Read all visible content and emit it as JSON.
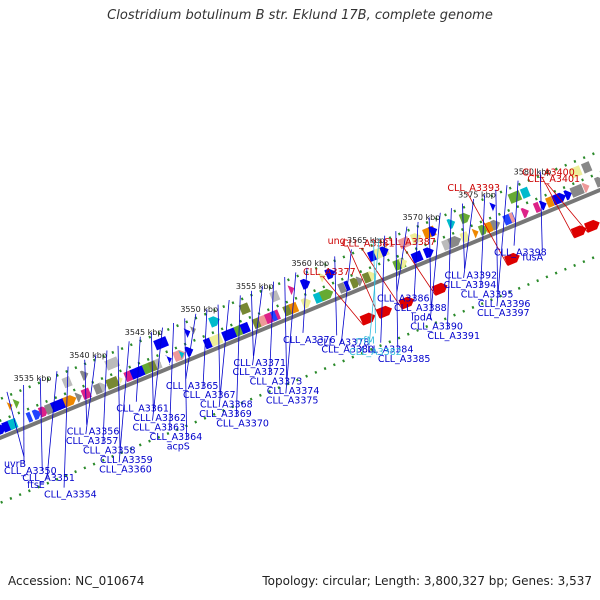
{
  "title": "Clostridium botulinum B str. Eklund 17B, complete genome",
  "footer": {
    "accession": "Accession: NC_010674",
    "summary": "Topology: circular; Length: 3,800,327 bp; Genes: 3,537"
  },
  "ticks": [
    {
      "label": "3535 kbp",
      "kbp": 3535
    },
    {
      "label": "3540 kbp",
      "kbp": 3540
    },
    {
      "label": "3545 kbp",
      "kbp": 3545
    },
    {
      "label": "3550 kbp",
      "kbp": 3550
    },
    {
      "label": "3555 kbp",
      "kbp": 3555
    },
    {
      "label": "3560 kbp",
      "kbp": 3560
    },
    {
      "label": "3565 kbp",
      "kbp": 3565
    },
    {
      "label": "3570 kbp",
      "kbp": 3570
    },
    {
      "label": "3575 kbp",
      "kbp": 3575
    },
    {
      "label": "3580 kbp",
      "kbp": 3580
    }
  ],
  "colors": {
    "forward_gene": "#0000ee",
    "reverse_gene": "#0000ee",
    "highlight": "#dd0000",
    "trna": "#33bbee",
    "label_blue": "#0000cc",
    "label_red": "#cc0000",
    "label_cyan": "#33bbdd"
  },
  "red_labels": [
    {
      "text": "CLL_A3401",
      "kbp": 3582.2
    },
    {
      "text": "CLL_A3400",
      "kbp": 3581.0
    },
    {
      "text": "CLL_A3393",
      "kbp": 3575.0
    },
    {
      "text": "CLL_A3387",
      "kbp": 3568.5
    },
    {
      "text": "CLL_A3381",
      "kbp": 3565.5
    },
    {
      "text": "ung",
      "kbp": 3563.5
    },
    {
      "text": "CLL_A3377",
      "kbp": 3562.0
    }
  ],
  "blue_labels": [
    {
      "text": "uvrB",
      "kbp": 3532.5
    },
    {
      "text": "CLL_A3350",
      "kbp": 3534.0
    },
    {
      "text": "CLL_A3351",
      "kbp": 3535.5
    },
    {
      "text": "ftsE",
      "kbp": 3537.0
    },
    {
      "text": "CLL_A3354",
      "kbp": 3538.0
    },
    {
      "text": "CLL_A3356",
      "kbp": 3539.5
    },
    {
      "text": "CLL_A3357",
      "kbp": 3540.5
    },
    {
      "text": "CLL_A3358",
      "kbp": 3541.5
    },
    {
      "text": "CLL_A3359",
      "kbp": 3542.5
    },
    {
      "text": "CLL_A3360",
      "kbp": 3543.5
    },
    {
      "text": "CLL_A3361",
      "kbp": 3544.5
    },
    {
      "text": "CLL_A3362",
      "kbp": 3545.5
    },
    {
      "text": "CLL_A3363",
      "kbp": 3546.5
    },
    {
      "text": "CLL_A3364",
      "kbp": 3547.5
    },
    {
      "text": "acpS",
      "kbp": 3548.5
    },
    {
      "text": "CLL_A3365",
      "kbp": 3549.5
    },
    {
      "text": "CLL_A3367",
      "kbp": 3550.5
    },
    {
      "text": "CLL_A3368",
      "kbp": 3551.5
    },
    {
      "text": "CLL_A3369",
      "kbp": 3552.5
    },
    {
      "text": "CLL_A3370",
      "kbp": 3553.5
    },
    {
      "text": "CLL_A3371",
      "kbp": 3554.5
    },
    {
      "text": "CLL_A3372",
      "kbp": 3555.5
    },
    {
      "text": "CLL_A3373",
      "kbp": 3556.5
    },
    {
      "text": "CLL_A3374",
      "kbp": 3557.5
    },
    {
      "text": "CLL_A3375",
      "kbp": 3558.5
    },
    {
      "text": "CLL_A3376",
      "kbp": 3559.5
    },
    {
      "text": "CLL_A3378",
      "kbp": 3562.0
    },
    {
      "text": "CLL_A3380",
      "kbp": 3563.5
    },
    {
      "text": "CLL_A3384",
      "kbp": 3566.5
    },
    {
      "text": "CLL_A3385",
      "kbp": 3567.5
    },
    {
      "text": "CLL_A3386",
      "kbp": 3568.5
    },
    {
      "text": "CLL_A3388",
      "kbp": 3569.5
    },
    {
      "text": "lpdA",
      "kbp": 3570.5
    },
    {
      "text": "CLL_A3390",
      "kbp": 3571.5
    },
    {
      "text": "CLL_A3391",
      "kbp": 3572.5
    },
    {
      "text": "CLL_A3392",
      "kbp": 3573.5
    },
    {
      "text": "CLL_A3394",
      "kbp": 3574.5
    },
    {
      "text": "CLL_A3395",
      "kbp": 3575.5
    },
    {
      "text": "CLL_A3396",
      "kbp": 3576.5
    },
    {
      "text": "CLL_A3397",
      "kbp": 3577.5
    },
    {
      "text": "CLL_A3398",
      "kbp": 3578.5
    },
    {
      "text": "fusA",
      "kbp": 3580.5
    }
  ],
  "cyan_labels": [
    {
      "text": "rrfM",
      "kbp": 3565.5
    },
    {
      "text": "CLL_A3382",
      "kbp": 3566.0
    }
  ]
}
